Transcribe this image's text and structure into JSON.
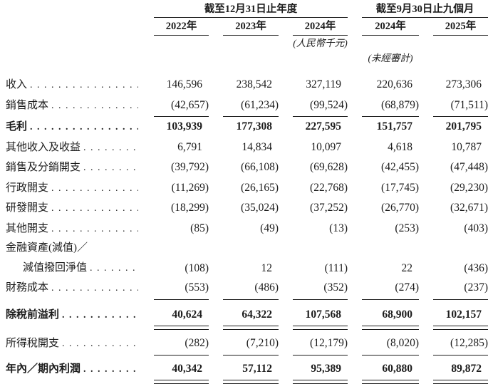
{
  "header": {
    "group1": {
      "title": "截至12月31日止年度",
      "years": [
        "2022年",
        "2023年",
        "2024年"
      ]
    },
    "group2": {
      "title": "截至9月30日止九個月",
      "years": [
        "2024年",
        "2025年"
      ]
    },
    "currency_note": "(人民幣千元)",
    "unaudited_note": "(未經審計)"
  },
  "rows": [
    {
      "label": "收入",
      "values": [
        "146,596",
        "238,542",
        "327,119",
        "220,636",
        "273,306"
      ]
    },
    {
      "label": "銷售成本",
      "values": [
        "(42,657)",
        "(61,234)",
        "(99,524)",
        "(68,879)",
        "(71,511)"
      ]
    },
    {
      "label": "毛利",
      "values": [
        "103,939",
        "177,308",
        "227,595",
        "151,757",
        "201,795"
      ]
    },
    {
      "label": "其他收入及收益",
      "values": [
        "6,791",
        "14,834",
        "10,097",
        "4,618",
        "10,787"
      ]
    },
    {
      "label": "銷售及分銷開支",
      "values": [
        "(39,792)",
        "(66,108)",
        "(69,628)",
        "(42,455)",
        "(47,448)"
      ]
    },
    {
      "label": "行政開支",
      "values": [
        "(11,269)",
        "(26,165)",
        "(22,768)",
        "(17,745)",
        "(29,230)"
      ]
    },
    {
      "label": "研發開支",
      "values": [
        "(18,299)",
        "(35,024)",
        "(37,252)",
        "(26,770)",
        "(32,671)"
      ]
    },
    {
      "label": "其他開支",
      "values": [
        "(85)",
        "(49)",
        "(13)",
        "(253)",
        "(403)"
      ]
    },
    {
      "label_line1": "金融資產(減值)／",
      "label": "減值撥回淨值",
      "values": [
        "(108)",
        "12",
        "(111)",
        "22",
        "(436)"
      ]
    },
    {
      "label": "財務成本",
      "values": [
        "(553)",
        "(486)",
        "(352)",
        "(274)",
        "(237)"
      ]
    },
    {
      "label": "除稅前溢利",
      "values": [
        "40,624",
        "64,322",
        "107,568",
        "68,900",
        "102,157"
      ]
    },
    {
      "label": "所得稅開支",
      "values": [
        "(282)",
        "(7,210)",
        "(12,179)",
        "(8,020)",
        "(12,285)"
      ]
    },
    {
      "label": "年內／期內利潤",
      "values": [
        "40,342",
        "57,112",
        "95,389",
        "60,880",
        "89,872"
      ]
    }
  ]
}
